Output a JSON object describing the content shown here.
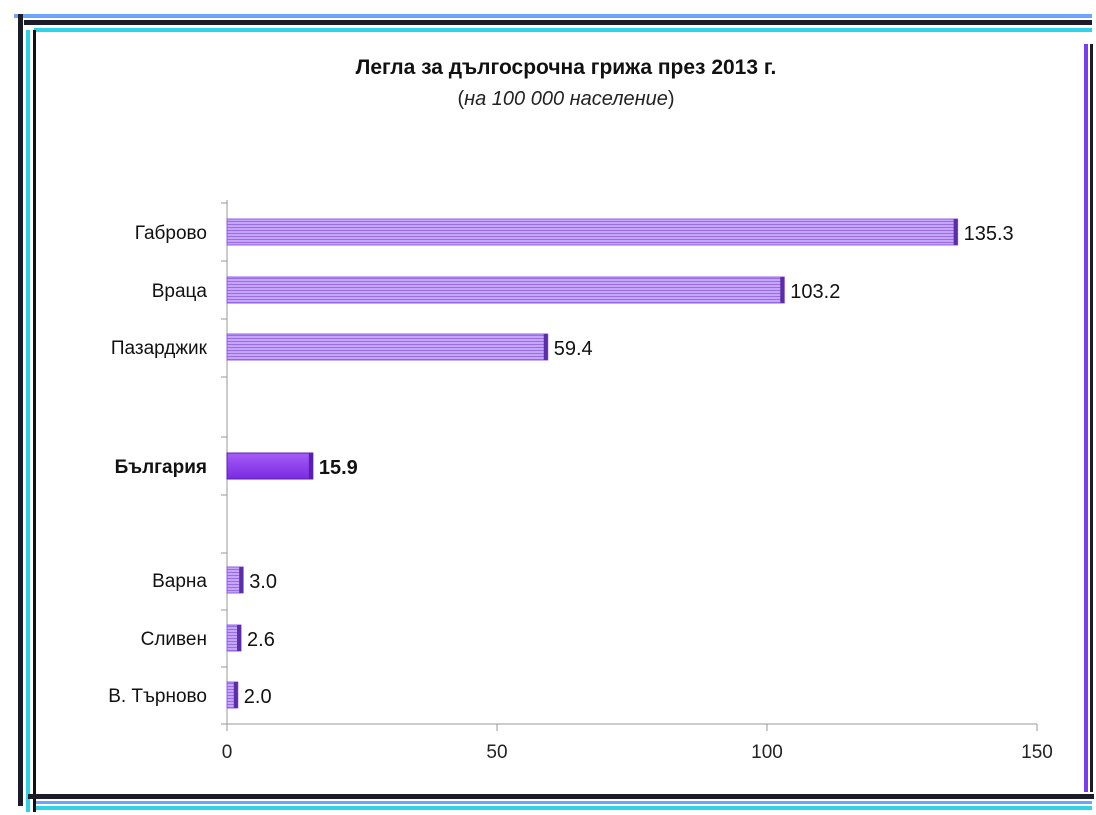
{
  "chart_data": {
    "type": "bar",
    "orientation": "horizontal",
    "title": "Легла за дългосрочна грижа през 2013 г.",
    "subtitle": {
      "open": "(",
      "italic": "на 100 000 население",
      "close": ")"
    },
    "categories": [
      "Габрово",
      "Враца",
      "Пазарджик",
      "България",
      "Варна",
      "Сливен",
      "В. Търново"
    ],
    "values": [
      135.3,
      103.2,
      59.4,
      15.9,
      3.0,
      2.6,
      2.0
    ],
    "value_labels": [
      "135.3",
      "103.2",
      "59.4",
      "15.9",
      "3.0",
      "2.6",
      "2.0"
    ],
    "highlight_category": "България",
    "xlim": [
      0,
      150
    ],
    "xticks": [
      0,
      50,
      100,
      150
    ],
    "xtick_labels": [
      "0",
      "50",
      "100",
      "150"
    ],
    "xlabel": "",
    "ylabel": "",
    "grid": false,
    "legend": "none",
    "colors": {
      "bar": "#b58ef5",
      "bar_stripe": "#8f5ee6",
      "bar_end": "#5a2ea6",
      "highlight": "#8e3af0",
      "highlight_end": "#5a1fb0",
      "axis": "#999999"
    }
  }
}
